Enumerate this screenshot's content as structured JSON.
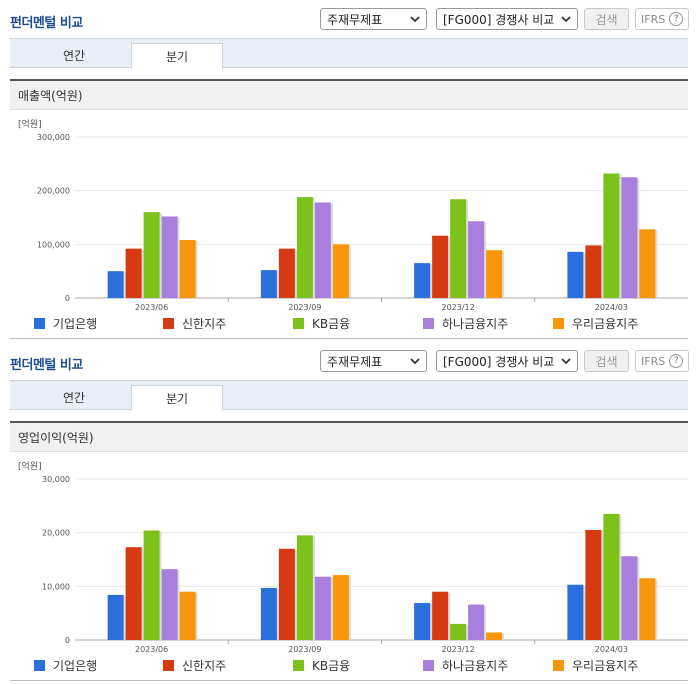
{
  "ui": {
    "title": "펀더멘털 비교",
    "select_statement": "주재무제표",
    "select_compare": "[FG000] 경쟁사 비교",
    "search_label": "검색",
    "ifrs_label": "IFRS",
    "help_glyph": "?",
    "tab_annual": "연간",
    "tab_quarter": "분기"
  },
  "colors": {
    "series": [
      "#2a6fdb",
      "#d63a12",
      "#7cc21a",
      "#a87fdc",
      "#f7960a"
    ],
    "axis": "#aaaaaa",
    "grid": "#e8e8e8",
    "tick_text": "#555555"
  },
  "chart_data": [
    {
      "type": "bar",
      "title": "매출액(억원)",
      "unit": "[억원]",
      "categories": [
        "2023/06",
        "2023/09",
        "2023/12",
        "2024/03"
      ],
      "ylim": [
        0,
        300000
      ],
      "yticks": [
        0,
        100000,
        200000,
        300000
      ],
      "ytick_labels": [
        "0",
        "100,000",
        "200,000",
        "300,000"
      ],
      "grid": true,
      "legend": "bottom",
      "series": [
        {
          "name": "기업은행",
          "values": [
            50000,
            52000,
            65000,
            86000
          ]
        },
        {
          "name": "신한지주",
          "values": [
            92000,
            92000,
            116000,
            98000
          ]
        },
        {
          "name": "KB금융",
          "values": [
            160000,
            188000,
            184000,
            232000
          ]
        },
        {
          "name": "하나금융지주",
          "values": [
            152000,
            178000,
            143000,
            225000
          ]
        },
        {
          "name": "우리금융지주",
          "values": [
            108000,
            100000,
            89000,
            128000
          ]
        }
      ]
    },
    {
      "type": "bar",
      "title": "영업이익(억원)",
      "unit": "[억원]",
      "categories": [
        "2023/06",
        "2023/09",
        "2023/12",
        "2024/03"
      ],
      "ylim": [
        0,
        30000
      ],
      "yticks": [
        0,
        10000,
        20000,
        30000
      ],
      "ytick_labels": [
        "0",
        "10,000",
        "20,000",
        "30,000"
      ],
      "grid": true,
      "legend": "bottom",
      "series": [
        {
          "name": "기업은행",
          "values": [
            8400,
            9700,
            6900,
            10300
          ]
        },
        {
          "name": "신한지주",
          "values": [
            17300,
            17000,
            9000,
            20500
          ]
        },
        {
          "name": "KB금융",
          "values": [
            20400,
            19500,
            3000,
            23500
          ]
        },
        {
          "name": "하나금융지주",
          "values": [
            13200,
            11800,
            6600,
            15600
          ]
        },
        {
          "name": "우리금융지주",
          "values": [
            9000,
            12100,
            1400,
            11500
          ]
        }
      ]
    }
  ]
}
